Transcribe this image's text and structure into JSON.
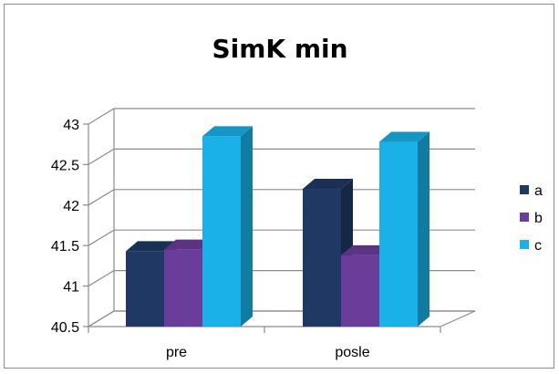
{
  "chart_data": {
    "type": "bar",
    "title": "SimK min",
    "categories": [
      "pre",
      "posle"
    ],
    "series": [
      {
        "name": "a",
        "values": [
          41.43,
          42.2
        ],
        "color": "#1f3864"
      },
      {
        "name": "b",
        "values": [
          41.45,
          41.38
        ],
        "color": "#6a3d9a"
      },
      {
        "name": "c",
        "values": [
          42.85,
          42.78
        ],
        "color": "#1ab0e8"
      }
    ],
    "ylim": [
      40.5,
      43
    ],
    "yticks": [
      "40.5",
      "41",
      "41.5",
      "42",
      "42.5",
      "43"
    ],
    "grid": true,
    "legend": "right",
    "style": "3d-clustered-column"
  }
}
